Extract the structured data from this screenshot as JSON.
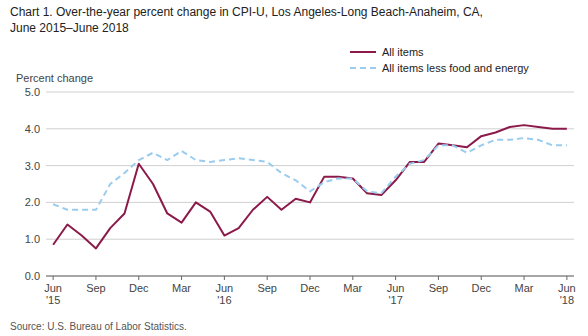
{
  "chart_data": {
    "type": "line",
    "title": "Chart 1. Over-the-year percent change in CPI-U, Los Angeles-Long Beach-Anaheim, CA,",
    "subtitle": "June 2015–June 2018",
    "y_label": "Percent change",
    "source": "Source: U.S. Bureau of Labor Statistics.",
    "categories": [
      "Jun\n'15",
      null,
      null,
      "Sep",
      null,
      null,
      "Dec",
      null,
      null,
      "Mar",
      null,
      null,
      "Jun\n'16",
      null,
      null,
      "Sep",
      null,
      null,
      "Dec",
      null,
      null,
      "Mar",
      null,
      null,
      "Jun\n'17",
      null,
      null,
      "Sep",
      null,
      null,
      "Dec",
      null,
      null,
      "Mar",
      null,
      null,
      "Jun\n'18"
    ],
    "ylim": [
      0.0,
      5.0
    ],
    "yticks": [
      {
        "value": 0.0,
        "label": "0.0"
      },
      {
        "value": 1.0,
        "label": "1.0"
      },
      {
        "value": 2.0,
        "label": "2.0"
      },
      {
        "value": 3.0,
        "label": "3.0"
      },
      {
        "value": 4.0,
        "label": "4.0"
      },
      {
        "value": 5.0,
        "label": "5.0"
      }
    ],
    "grid": true,
    "legend": "top-right",
    "series": [
      {
        "name": "All items",
        "color": "#8B1A4A",
        "line_style": "solid",
        "values": [
          0.85,
          1.4,
          1.1,
          0.75,
          1.3,
          1.7,
          3.05,
          2.5,
          1.7,
          1.45,
          2.0,
          1.75,
          1.1,
          1.3,
          1.8,
          2.15,
          1.8,
          2.1,
          2.0,
          2.7,
          2.7,
          2.65,
          2.25,
          2.2,
          2.6,
          3.1,
          3.1,
          3.6,
          3.55,
          3.5,
          3.8,
          3.9,
          4.05,
          4.1,
          4.05,
          4.0,
          4.0
        ]
      },
      {
        "name": "All items less food and energy",
        "color": "#99CCEE",
        "line_style": "dashed",
        "values": [
          1.95,
          1.8,
          1.8,
          1.8,
          2.5,
          2.8,
          3.15,
          3.35,
          3.15,
          3.4,
          3.15,
          3.1,
          3.15,
          3.2,
          3.15,
          3.1,
          2.8,
          2.6,
          2.3,
          2.55,
          2.65,
          2.65,
          2.3,
          2.25,
          2.7,
          3.05,
          3.15,
          3.55,
          3.55,
          3.35,
          3.55,
          3.7,
          3.7,
          3.75,
          3.7,
          3.55,
          3.55
        ]
      }
    ]
  }
}
